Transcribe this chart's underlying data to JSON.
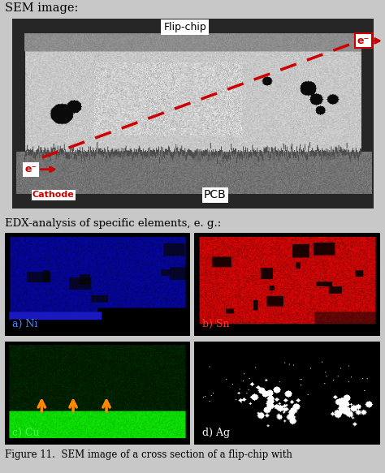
{
  "fig_width": 4.74,
  "fig_height": 5.83,
  "dpi": 100,
  "bg_color": "#c8c8c8",
  "sem_label": "SEM image:",
  "edx_label": "EDX-analysis of specific elements, e. g.:",
  "caption": "Figure 11.  SEM image of a cross section of a flip-chip with",
  "flip_chip_label": "Flip-chip",
  "pcb_label": "PCB",
  "cathode_label": "Cathode",
  "sub_a": "a) Ni",
  "sub_b": "b) Sn",
  "sub_c": "c) Cu",
  "sub_d": "d) Ag",
  "label_color_a": "#4488ff",
  "label_color_b": "#ff3333",
  "label_color_c": "#44ff44",
  "label_color_d": "#ffffff",
  "arrow_color": "#cc0000",
  "orange_arrow_color": "#ff8800"
}
